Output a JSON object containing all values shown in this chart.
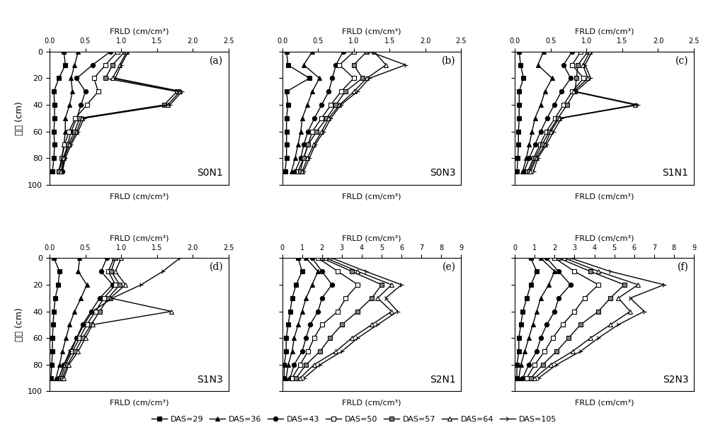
{
  "depth": [
    0,
    10,
    20,
    30,
    40,
    50,
    60,
    70,
    80,
    90
  ],
  "panels": [
    {
      "label": "S0N1",
      "panel_letter": "(a)",
      "xlim": [
        0,
        2.5
      ],
      "xticks": [
        0.0,
        0.5,
        1.0,
        1.5,
        2.0,
        2.5
      ],
      "xtick_labels": [
        "0.0",
        "0.5",
        "1.0",
        "1.5",
        "2.0",
        "2.5"
      ],
      "series": {
        "DAS=29": [
          0.2,
          0.22,
          0.13,
          0.06,
          0.07,
          0.07,
          0.06,
          0.07,
          0.06,
          0.04
        ],
        "DAS=36": [
          0.4,
          0.35,
          0.3,
          0.32,
          0.28,
          0.22,
          0.22,
          0.2,
          0.17,
          0.13
        ],
        "DAS=43": [
          0.85,
          0.6,
          0.38,
          0.5,
          0.44,
          0.38,
          0.3,
          0.25,
          0.2,
          0.18
        ],
        "DAS=50": [
          0.95,
          0.78,
          0.62,
          0.68,
          0.52,
          0.36,
          0.27,
          0.21,
          0.17,
          0.13
        ],
        "DAS=57": [
          1.05,
          0.88,
          0.78,
          1.78,
          1.6,
          0.42,
          0.35,
          0.26,
          0.19,
          0.13
        ],
        "DAS=64": [
          1.08,
          0.98,
          0.88,
          1.82,
          1.65,
          0.45,
          0.38,
          0.28,
          0.2,
          0.16
        ],
        "DAS=105": [
          1.1,
          1.0,
          0.92,
          1.85,
          1.68,
          0.48,
          0.4,
          0.3,
          0.22,
          0.18
        ]
      }
    },
    {
      "label": "S0N3",
      "panel_letter": "(b)",
      "xlim": [
        0,
        2.5
      ],
      "xticks": [
        0.0,
        0.5,
        1.0,
        1.5,
        2.0,
        2.5
      ],
      "xtick_labels": [
        "0.0",
        "0.5",
        "1.0",
        "1.5",
        "2.0",
        "2.5"
      ],
      "series": {
        "DAS=29": [
          0.06,
          0.08,
          0.38,
          0.06,
          0.08,
          0.06,
          0.06,
          0.06,
          0.06,
          0.04
        ],
        "DAS=36": [
          0.42,
          0.3,
          0.52,
          0.42,
          0.35,
          0.28,
          0.26,
          0.22,
          0.18,
          0.13
        ],
        "DAS=43": [
          0.85,
          0.75,
          0.7,
          0.65,
          0.55,
          0.45,
          0.36,
          0.3,
          0.26,
          0.18
        ],
        "DAS=50": [
          1.0,
          0.8,
          1.0,
          0.82,
          0.68,
          0.55,
          0.42,
          0.36,
          0.3,
          0.22
        ],
        "DAS=57": [
          1.18,
          1.0,
          1.12,
          0.88,
          0.75,
          0.62,
          0.48,
          0.36,
          0.3,
          0.25
        ],
        "DAS=64": [
          1.28,
          1.45,
          1.18,
          1.0,
          0.8,
          0.65,
          0.55,
          0.44,
          0.35,
          0.28
        ],
        "DAS=105": [
          1.22,
          1.72,
          1.22,
          1.05,
          0.82,
          0.68,
          0.58,
          0.46,
          0.38,
          0.3
        ]
      }
    },
    {
      "label": "S1N1",
      "panel_letter": "(c)",
      "xlim": [
        0,
        2.5
      ],
      "xticks": [
        0.0,
        0.5,
        1.0,
        1.5,
        2.0,
        2.5
      ],
      "xtick_labels": [
        "0.0",
        "0.5",
        "1.0",
        "1.5",
        "2.0",
        "2.5"
      ],
      "series": {
        "DAS=29": [
          0.06,
          0.08,
          0.12,
          0.06,
          0.06,
          0.06,
          0.05,
          0.05,
          0.04,
          0.03
        ],
        "DAS=36": [
          0.4,
          0.32,
          0.52,
          0.42,
          0.36,
          0.28,
          0.24,
          0.2,
          0.16,
          0.11
        ],
        "DAS=43": [
          0.8,
          0.68,
          0.78,
          0.65,
          0.55,
          0.45,
          0.36,
          0.28,
          0.2,
          0.13
        ],
        "DAS=50": [
          0.92,
          0.8,
          0.96,
          0.8,
          0.68,
          0.56,
          0.44,
          0.35,
          0.26,
          0.18
        ],
        "DAS=57": [
          1.02,
          0.88,
          0.86,
          0.84,
          0.73,
          0.6,
          0.48,
          0.38,
          0.28,
          0.2
        ],
        "DAS=64": [
          1.05,
          0.95,
          1.02,
          0.82,
          1.68,
          0.62,
          0.5,
          0.42,
          0.3,
          0.22
        ],
        "DAS=105": [
          1.08,
          0.98,
          1.06,
          0.85,
          1.72,
          0.65,
          0.54,
          0.44,
          0.32,
          0.26
        ]
      }
    },
    {
      "label": "S1N3",
      "panel_letter": "(d)",
      "xlim": [
        0,
        2.5
      ],
      "xticks": [
        0.0,
        0.5,
        1.0,
        1.5,
        2.0,
        2.5
      ],
      "xtick_labels": [
        "0.0",
        "0.5",
        "1.0",
        "1.5",
        "2.0",
        "2.5"
      ],
      "series": {
        "DAS=29": [
          0.06,
          0.14,
          0.12,
          0.08,
          0.06,
          0.05,
          0.04,
          0.04,
          0.03,
          0.02
        ],
        "DAS=36": [
          0.42,
          0.4,
          0.52,
          0.44,
          0.35,
          0.28,
          0.23,
          0.18,
          0.14,
          0.09
        ],
        "DAS=43": [
          0.8,
          0.72,
          0.88,
          0.7,
          0.58,
          0.46,
          0.38,
          0.3,
          0.2,
          0.13
        ],
        "DAS=50": [
          0.9,
          0.82,
          0.92,
          0.76,
          0.64,
          0.52,
          0.42,
          0.32,
          0.22,
          0.16
        ],
        "DAS=57": [
          0.92,
          0.86,
          0.98,
          0.82,
          0.7,
          0.58,
          0.46,
          0.36,
          0.25,
          0.18
        ],
        "DAS=64": [
          1.0,
          0.92,
          1.06,
          0.85,
          1.7,
          0.6,
          0.5,
          0.4,
          0.27,
          0.2
        ],
        "DAS=105": [
          1.82,
          1.58,
          1.28,
          0.88,
          0.6,
          0.48,
          0.38,
          0.28,
          0.2,
          0.13
        ]
      }
    },
    {
      "label": "S2N1",
      "panel_letter": "(e)",
      "xlim": [
        0,
        9
      ],
      "xticks": [
        0,
        1,
        2,
        3,
        4,
        5,
        6,
        7,
        8,
        9
      ],
      "xtick_labels": [
        "0",
        "1",
        "2",
        "3",
        "4",
        "5",
        "6",
        "7",
        "8",
        "9"
      ],
      "series": {
        "DAS=29": [
          0.8,
          1.0,
          0.7,
          0.5,
          0.4,
          0.3,
          0.2,
          0.2,
          0.1,
          0.1
        ],
        "DAS=36": [
          1.2,
          1.8,
          1.5,
          1.2,
          1.0,
          0.8,
          0.6,
          0.5,
          0.3,
          0.2
        ],
        "DAS=43": [
          1.5,
          2.0,
          2.5,
          2.0,
          1.8,
          1.4,
          1.2,
          1.0,
          0.6,
          0.4
        ],
        "DAS=50": [
          1.8,
          2.8,
          3.8,
          3.2,
          2.8,
          2.0,
          1.6,
          1.3,
          0.9,
          0.5
        ],
        "DAS=57": [
          2.0,
          3.5,
          5.0,
          4.5,
          3.8,
          3.0,
          2.4,
          1.9,
          1.2,
          0.7
        ],
        "DAS=64": [
          2.2,
          3.8,
          5.5,
          4.8,
          5.5,
          4.5,
          3.5,
          2.7,
          1.6,
          0.9
        ],
        "DAS=105": [
          2.5,
          4.2,
          6.0,
          5.2,
          5.8,
          4.8,
          3.8,
          3.0,
          1.9,
          1.1
        ]
      }
    },
    {
      "label": "S2N3",
      "panel_letter": "(f)",
      "xlim": [
        0,
        9
      ],
      "xticks": [
        0,
        1,
        2,
        3,
        4,
        5,
        6,
        7,
        8,
        9
      ],
      "xtick_labels": [
        "0",
        "1",
        "2",
        "3",
        "4",
        "5",
        "6",
        "7",
        "8",
        "9"
      ],
      "series": {
        "DAS=29": [
          0.8,
          1.1,
          0.8,
          0.6,
          0.4,
          0.3,
          0.2,
          0.2,
          0.1,
          0.1
        ],
        "DAS=36": [
          1.3,
          2.0,
          1.7,
          1.3,
          1.1,
          0.9,
          0.7,
          0.5,
          0.3,
          0.2
        ],
        "DAS=43": [
          1.6,
          2.2,
          2.8,
          2.2,
          2.0,
          1.6,
          1.3,
          1.1,
          0.7,
          0.4
        ],
        "DAS=50": [
          2.0,
          3.0,
          4.2,
          3.5,
          3.0,
          2.4,
          1.9,
          1.5,
          1.0,
          0.6
        ],
        "DAS=57": [
          2.2,
          3.8,
          5.5,
          4.8,
          4.2,
          3.3,
          2.7,
          2.1,
          1.4,
          0.8
        ],
        "DAS=64": [
          2.5,
          4.2,
          6.2,
          5.2,
          5.8,
          4.8,
          3.8,
          2.9,
          1.8,
          1.0
        ],
        "DAS=105": [
          2.8,
          4.8,
          7.5,
          5.8,
          6.5,
          5.2,
          4.2,
          3.3,
          2.1,
          1.2
        ]
      }
    }
  ],
  "legend_entries": [
    "DAS=29",
    "DAS=36",
    "DAS=43",
    "DAS=50",
    "DAS=57",
    "DAS=64",
    "DAS=105"
  ],
  "ylabel": "深度 (cm)",
  "xlabel": "FRLD (cm/cm³)"
}
